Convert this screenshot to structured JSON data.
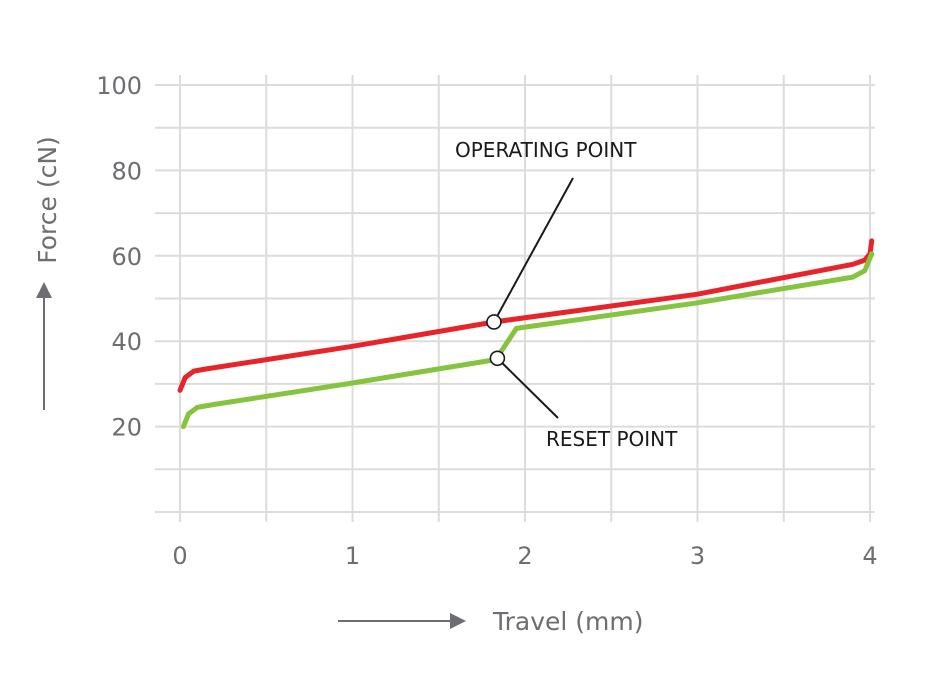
{
  "chart_data": {
    "type": "line",
    "xlabel": "Travel (mm)",
    "ylabel": "Force (cN)",
    "xlim": [
      0,
      4
    ],
    "ylim": [
      0,
      100
    ],
    "x_ticks": [
      "0",
      "1",
      "2",
      "3",
      "4"
    ],
    "y_ticks": [
      "20",
      "40",
      "60",
      "80",
      "100"
    ],
    "grid": true,
    "colors": {
      "operating": "#e8242a",
      "reset": "#86c440",
      "grid": "#dcdcdc",
      "axis_text": "#6d6e71"
    },
    "series": [
      {
        "name": "",
        "color": "#e8242a",
        "x": [
          0,
          0.03,
          0.08,
          0.15,
          1.0,
          1.82,
          3.0,
          3.9,
          3.97,
          4.0,
          4.01
        ],
        "y": [
          28.5,
          31.5,
          33,
          33.5,
          38.8,
          44.5,
          51,
          58,
          59,
          60.5,
          63.5
        ]
      },
      {
        "name": "",
        "color": "#86c440",
        "x": [
          0.02,
          0.05,
          0.1,
          0.2,
          1.0,
          1.83,
          1.95,
          3.0,
          3.9,
          3.97,
          4.01
        ],
        "y": [
          20,
          23,
          24.5,
          25.2,
          30.2,
          35.7,
          43,
          49,
          55,
          56.5,
          60.5
        ]
      }
    ],
    "annotations": [
      {
        "text": "OPERATING POINT",
        "x": 1.82,
        "y": 44.5
      },
      {
        "text": "RESET POINT",
        "x": 1.84,
        "y": 36
      }
    ]
  }
}
